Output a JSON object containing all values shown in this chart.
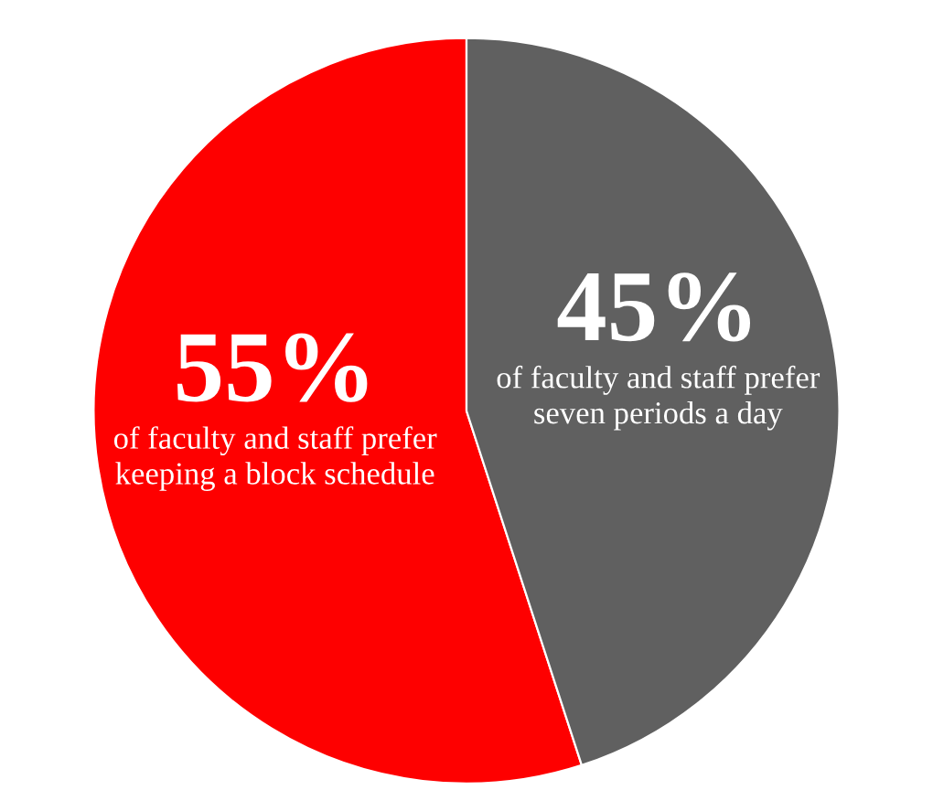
{
  "chart_data": {
    "type": "pie",
    "categories": [
      "of faculty and staff prefer keeping a block schedule",
      "of faculty and staff prefer seven periods a day"
    ],
    "values": [
      55,
      45
    ],
    "colors": [
      "#fe0000",
      "#606060"
    ],
    "value_labels": [
      "55%",
      "45%"
    ]
  }
}
